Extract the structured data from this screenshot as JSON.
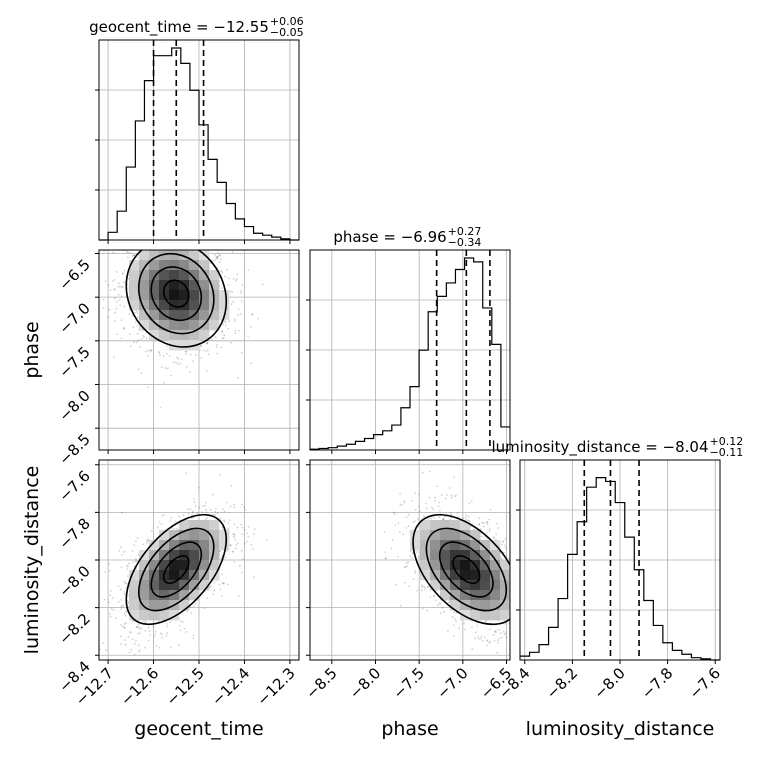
{
  "chart_data": {
    "type": "corner",
    "parameters": [
      {
        "key": "geocent_time",
        "label": "geocent_time",
        "title": {
          "prefix": "geocent_time = −12.55",
          "plus": "+0.06",
          "minus": "−0.05"
        },
        "median": -12.55,
        "q_low": -12.6,
        "q_high": -12.49,
        "range": [
          -12.72,
          -12.28
        ],
        "ticks": [
          -12.7,
          -12.6,
          -12.5,
          -12.4,
          -12.3
        ],
        "tick_labels": [
          "−12.7",
          "−12.6",
          "−12.5",
          "−12.4",
          "−12.3"
        ],
        "hist": [
          0,
          0.04,
          0.15,
          0.38,
          0.62,
          0.83,
          0.96,
          0.96,
          1.0,
          0.92,
          0.78,
          0.6,
          0.42,
          0.3,
          0.19,
          0.11,
          0.07,
          0.035,
          0.025,
          0.015,
          0.006,
          0
        ]
      },
      {
        "key": "phase",
        "label": "phase",
        "title": {
          "prefix": "phase = −6.96",
          "plus": "+0.27",
          "minus": "−0.34"
        },
        "median": -6.96,
        "q_low": -7.3,
        "q_high": -6.69,
        "range": [
          -8.75,
          -6.46
        ],
        "ticks": [
          -8.5,
          -8.0,
          -7.5,
          -7.0,
          -6.5
        ],
        "tick_labels": [
          "−8.5",
          "−8.0",
          "−7.5",
          "−7.0",
          "−6.5"
        ],
        "hist": [
          0.004,
          0.008,
          0.012,
          0.02,
          0.03,
          0.045,
          0.06,
          0.08,
          0.1,
          0.13,
          0.22,
          0.33,
          0.52,
          0.72,
          0.8,
          0.87,
          0.94,
          1.0,
          0.98,
          0.74,
          0.55,
          0.12
        ]
      },
      {
        "key": "luminosity_distance",
        "label": "luminosity_distance",
        "title": {
          "prefix": "luminosity_distance = −8.04",
          "plus": "+0.12",
          "minus": "−0.11"
        },
        "median": -8.04,
        "q_low": -8.15,
        "q_high": -7.92,
        "range": [
          -8.42,
          -7.58
        ],
        "ticks": [
          -8.4,
          -8.2,
          -8.0,
          -7.8,
          -7.6
        ],
        "tick_labels": [
          "−8.4",
          "−8.2",
          "−8.0",
          "−7.8",
          "−7.6"
        ],
        "hist": [
          0.02,
          0.04,
          0.08,
          0.17,
          0.32,
          0.55,
          0.72,
          0.9,
          0.95,
          0.93,
          0.82,
          0.64,
          0.47,
          0.31,
          0.18,
          0.09,
          0.05,
          0.03,
          0.012,
          0.006,
          0
        ]
      }
    ],
    "correlations": {
      "phase|geocent_time": -0.15,
      "luminosity_distance|geocent_time": 0.55,
      "luminosity_distance|phase": -0.5
    },
    "contour_levels_sigma": [
      0.5,
      1.0,
      1.5,
      2.0
    ],
    "grid": true
  }
}
